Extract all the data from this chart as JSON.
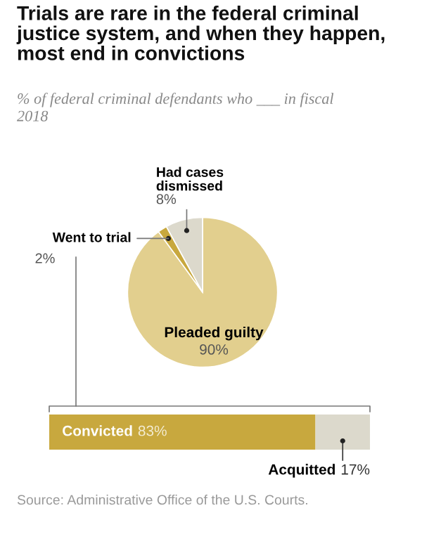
{
  "chart_data": [
    {
      "type": "pie",
      "title": "Trials are rare in the federal criminal justice system, and when they happen, most end in convictions",
      "subtitle": "% of federal criminal defendants who ___ in fiscal 2018",
      "categories": [
        "Pleaded guilty",
        "Went to trial",
        "Had cases dismissed"
      ],
      "values": [
        90,
        2,
        8
      ],
      "value_labels": [
        "90%",
        "2%",
        "8%"
      ],
      "colors": [
        "#e2cf8e",
        "#c8a83e",
        "#dcd9cc"
      ]
    },
    {
      "type": "bar",
      "orientation": "horizontal",
      "stacked": true,
      "categories": [
        null
      ],
      "tick_labels": false,
      "series": [
        {
          "name": "Convicted",
          "color": "#c8a83e",
          "values": [
            83
          ],
          "value_labels": [
            "83%"
          ]
        },
        {
          "name": "Acquitted",
          "color": "#dcd9cc",
          "values": [
            17
          ],
          "value_labels": [
            "17%"
          ]
        }
      ],
      "annotations": [
        "Source: Administrative Office of the U.S. Courts."
      ]
    }
  ]
}
